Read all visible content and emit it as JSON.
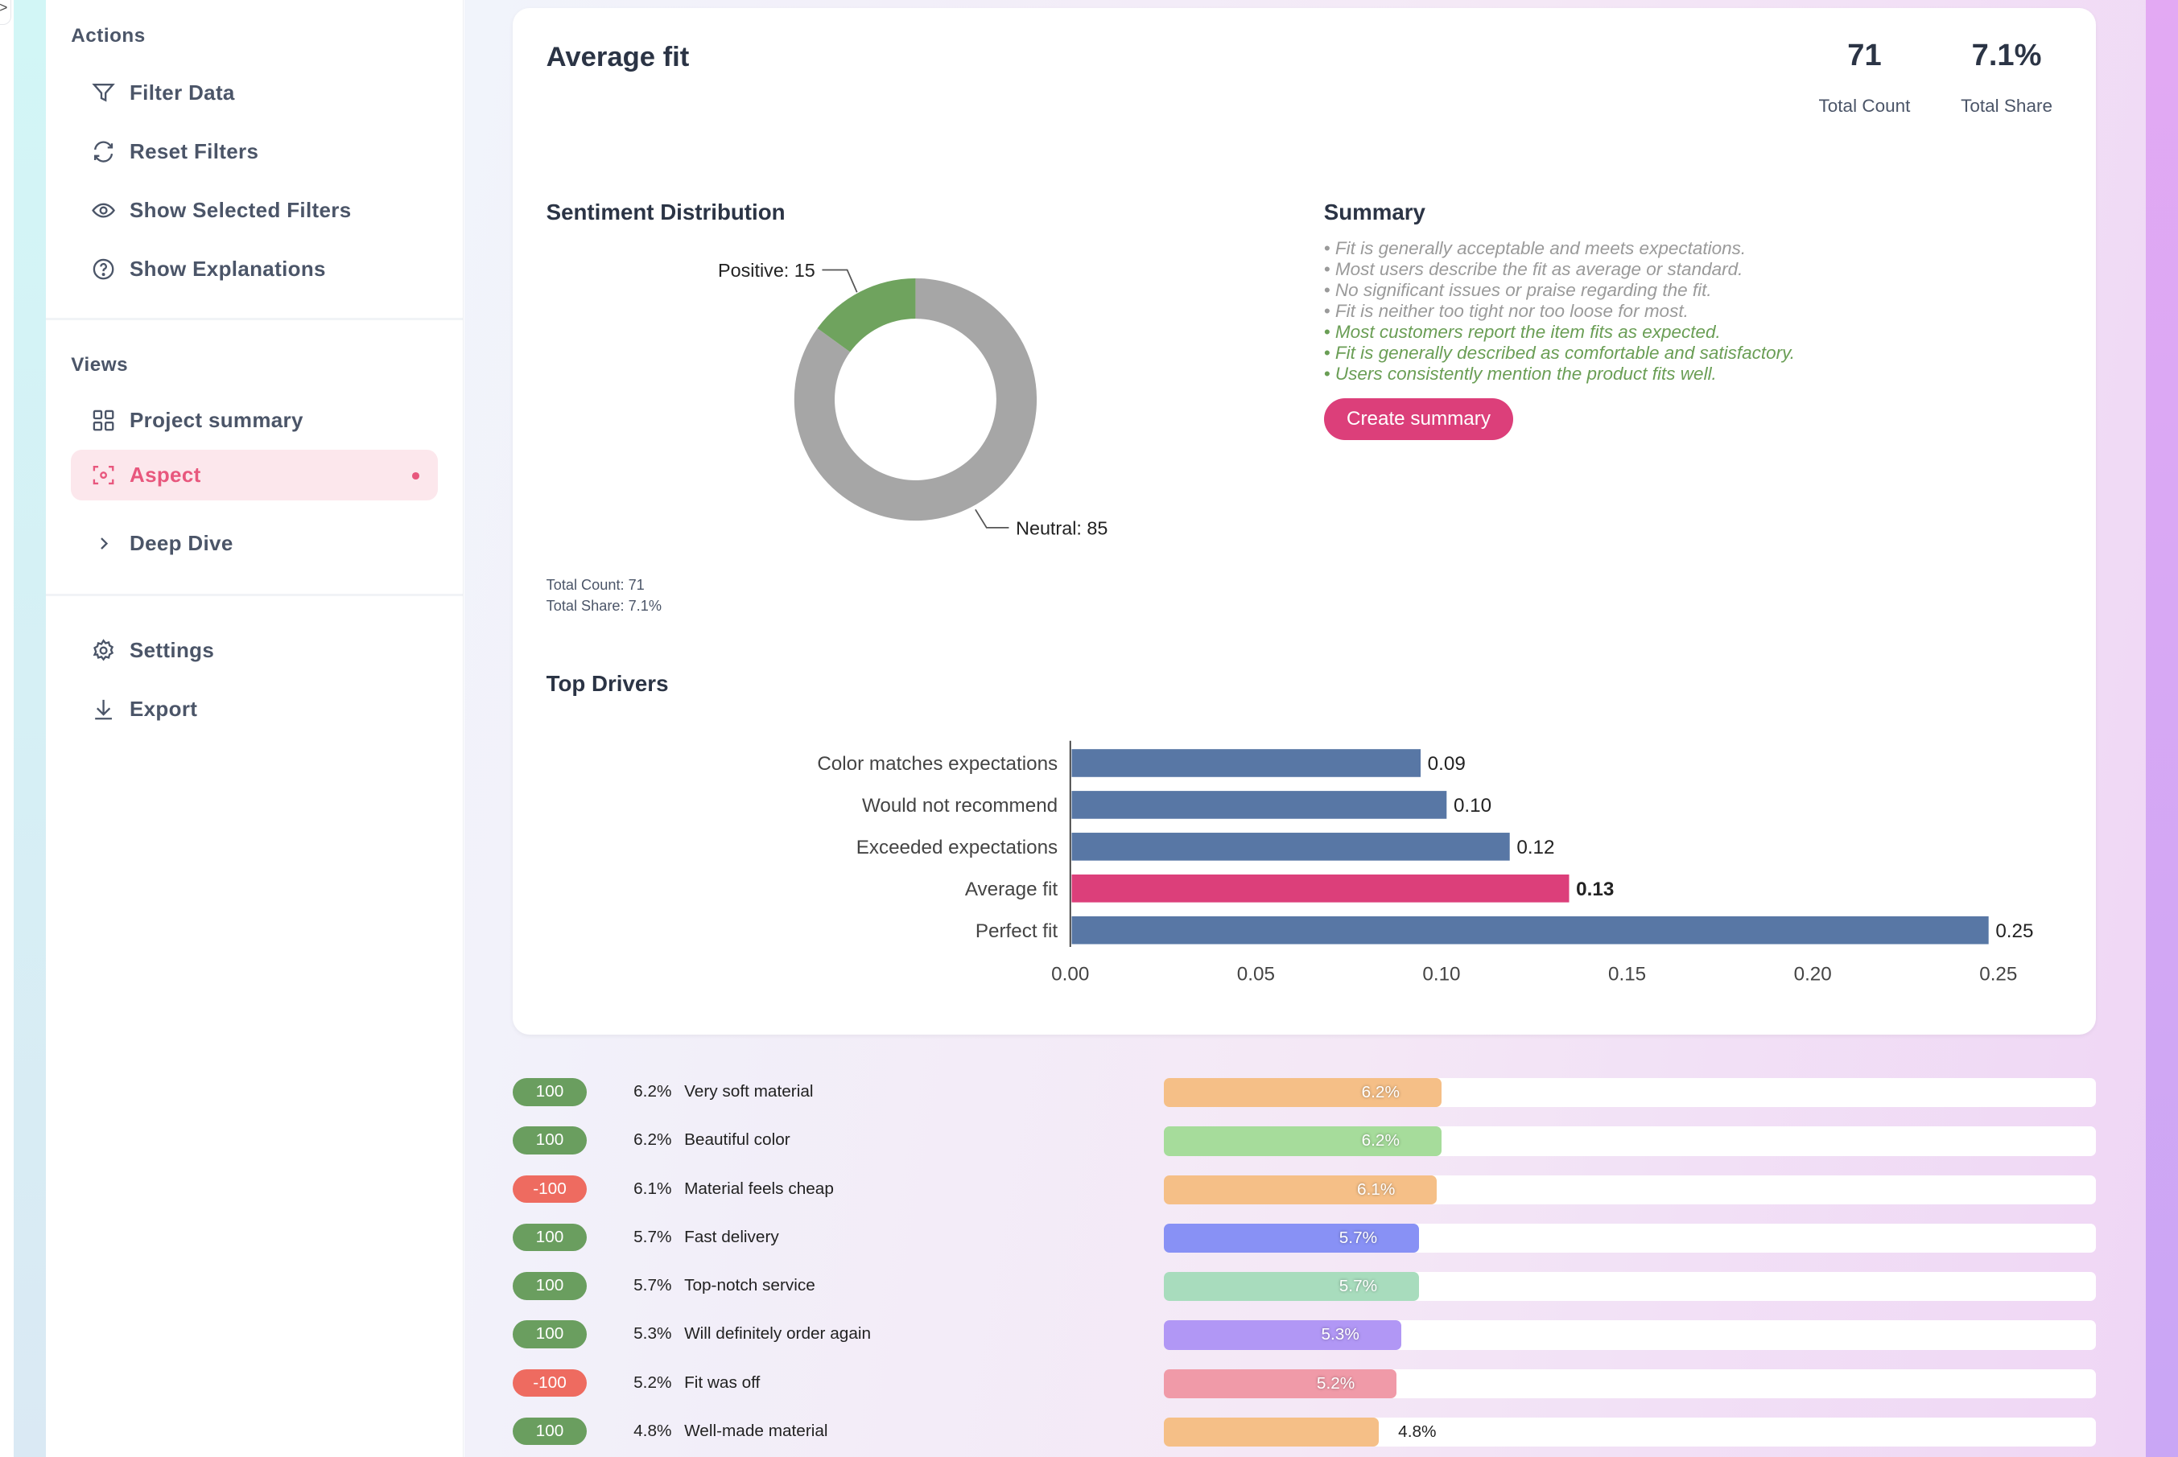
{
  "edge_tab": {
    "glyph": ">"
  },
  "sidebar": {
    "actions_heading": "Actions",
    "actions": [
      {
        "label": "Filter Data",
        "icon": "filter-icon"
      },
      {
        "label": "Reset Filters",
        "icon": "refresh-icon"
      },
      {
        "label": "Show Selected Filters",
        "icon": "eye-icon"
      },
      {
        "label": "Show Explanations",
        "icon": "help-circle-icon"
      }
    ],
    "views_heading": "Views",
    "views": [
      {
        "label": "Project summary",
        "icon": "grid-icon"
      },
      {
        "label": "Aspect",
        "icon": "focus-icon",
        "active": true
      },
      {
        "label": "Deep Dive",
        "icon": "chevron-right-icon"
      }
    ],
    "bottom": [
      {
        "label": "Settings",
        "icon": "gear-icon"
      },
      {
        "label": "Export",
        "icon": "download-icon"
      }
    ],
    "accent": "#e8577d"
  },
  "card": {
    "title": "Average fit",
    "stats": [
      {
        "value": "71",
        "label": "Total Count"
      },
      {
        "value": "7.1%",
        "label": "Total Share"
      }
    ],
    "sentiment": {
      "heading": "Sentiment Distribution",
      "positive_label": "Positive: 15",
      "neutral_label": "Neutral: 85",
      "total_count": "Total Count: 71",
      "total_share": "Total Share: 7.1%"
    },
    "summary": {
      "heading": "Summary",
      "lines": [
        {
          "text": "• Fit is generally acceptable and meets expectations.",
          "tone": "neutral"
        },
        {
          "text": "• Most users describe the fit as average or standard.",
          "tone": "neutral"
        },
        {
          "text": "• No significant issues or praise regarding the fit.",
          "tone": "neutral"
        },
        {
          "text": "• Fit is neither too tight nor too loose for most.",
          "tone": "neutral"
        },
        {
          "text": "• Most customers report the item fits as expected.",
          "tone": "positive"
        },
        {
          "text": "• Fit is generally described as comfortable and satisfactory.",
          "tone": "positive"
        },
        {
          "text": "• Users consistently mention the product fits well.",
          "tone": "positive"
        }
      ],
      "colors": {
        "neutral": "#9a9a9a",
        "positive": "#6a9e55"
      },
      "button": "Create summary"
    },
    "drivers_heading": "Top Drivers"
  },
  "chart_data": [
    {
      "type": "pie",
      "title": "Sentiment Distribution",
      "donut": true,
      "slices": [
        {
          "name": "Positive",
          "value": 15,
          "color": "#6fa35e"
        },
        {
          "name": "Neutral",
          "value": 85,
          "color": "#a6a6a6"
        }
      ]
    },
    {
      "type": "bar",
      "orientation": "horizontal",
      "title": "Top Drivers",
      "categories": [
        "Color matches expectations",
        "Would not recommend",
        "Exceeded expectations",
        "Average fit",
        "Perfect fit"
      ],
      "values": [
        0.094,
        0.101,
        0.118,
        0.134,
        0.247
      ],
      "data_labels": [
        "0.09",
        "0.10",
        "0.12",
        "0.13",
        "0.25"
      ],
      "highlight": "Average fit",
      "colors": {
        "default": "#5877a5",
        "highlight": "#dc3f7a"
      },
      "xlim": [
        0,
        0.25
      ],
      "xticks": [
        "0.00",
        "0.05",
        "0.10",
        "0.15",
        "0.20",
        "0.25"
      ],
      "grid": false
    }
  ],
  "aspects": [
    {
      "score": "100",
      "sentiment": "positive",
      "share": "6.2%",
      "label": "Very soft material",
      "pct": 6.2,
      "color": "#f5bf87"
    },
    {
      "score": "100",
      "sentiment": "positive",
      "share": "6.2%",
      "label": "Beautiful color",
      "pct": 6.2,
      "color": "#a6dc9b"
    },
    {
      "score": "-100",
      "sentiment": "negative",
      "share": "6.1%",
      "label": "Material feels cheap",
      "pct": 6.1,
      "color": "#f5bf87"
    },
    {
      "score": "100",
      "sentiment": "positive",
      "share": "5.7%",
      "label": "Fast delivery",
      "pct": 5.7,
      "color": "#8891f5"
    },
    {
      "score": "100",
      "sentiment": "positive",
      "share": "5.7%",
      "label": "Top-notch service",
      "pct": 5.7,
      "color": "#a8dcbd"
    },
    {
      "score": "100",
      "sentiment": "positive",
      "share": "5.3%",
      "label": "Will definitely order again",
      "pct": 5.3,
      "color": "#b197f5"
    },
    {
      "score": "-100",
      "sentiment": "negative",
      "share": "5.2%",
      "label": "Fit was off",
      "pct": 5.2,
      "color": "#f09aa8"
    },
    {
      "score": "100",
      "sentiment": "positive",
      "share": "4.8%",
      "label": "Well-made material",
      "pct": 4.8,
      "color": "#f5bf87"
    }
  ],
  "pill_colors": {
    "positive": "#6a9e5f",
    "negative": "#ee6b60"
  }
}
